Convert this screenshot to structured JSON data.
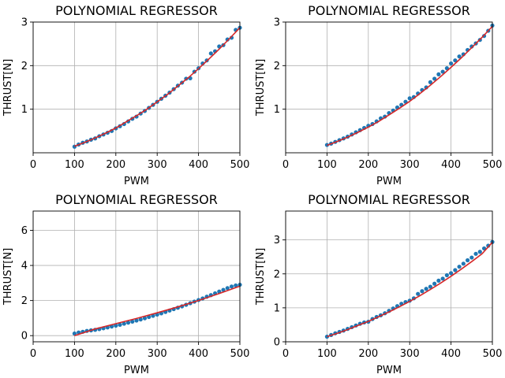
{
  "chart_data": [
    {
      "type": "scatter",
      "title": "POLYNOMIAL REGRESSOR",
      "xlabel": "PWM",
      "ylabel": "THRUST[N]",
      "xlim": [
        0,
        500
      ],
      "ylim": [
        0,
        3.0
      ],
      "xticks": [
        "0",
        "100",
        "200",
        "300",
        "400",
        "500"
      ],
      "yticks": [
        {
          "v": 1,
          "label": "1"
        },
        {
          "v": 2,
          "label": "2"
        },
        {
          "v": 3,
          "label": "3"
        }
      ],
      "grid": true,
      "points": {
        "x": [
          100,
          110,
          120,
          130,
          140,
          150,
          160,
          170,
          180,
          190,
          200,
          210,
          220,
          230,
          240,
          250,
          260,
          270,
          280,
          290,
          300,
          310,
          320,
          330,
          340,
          350,
          360,
          370,
          380,
          390,
          400,
          410,
          420,
          430,
          440,
          450,
          460,
          470,
          480,
          490,
          500
        ],
        "y": [
          0.14,
          0.19,
          0.23,
          0.26,
          0.3,
          0.33,
          0.38,
          0.42,
          0.46,
          0.5,
          0.56,
          0.61,
          0.66,
          0.72,
          0.78,
          0.83,
          0.9,
          0.96,
          1.03,
          1.1,
          1.17,
          1.24,
          1.31,
          1.38,
          1.46,
          1.54,
          1.61,
          1.7,
          1.71,
          1.86,
          1.94,
          2.05,
          2.12,
          2.28,
          2.33,
          2.44,
          2.47,
          2.6,
          2.64,
          2.82,
          2.87
        ]
      },
      "fit": {
        "x": [
          100,
          125,
          150,
          175,
          200,
          225,
          250,
          275,
          300,
          325,
          350,
          375,
          400,
          425,
          450,
          475,
          500
        ],
        "y": [
          0.15,
          0.24,
          0.34,
          0.45,
          0.57,
          0.71,
          0.85,
          1.0,
          1.17,
          1.34,
          1.53,
          1.72,
          1.93,
          2.15,
          2.38,
          2.62,
          2.87
        ]
      }
    },
    {
      "type": "scatter",
      "title": "POLYNOMIAL REGRESSOR",
      "xlabel": "PWM",
      "ylabel": "THRUST[N]",
      "xlim": [
        0,
        500
      ],
      "ylim": [
        0,
        3.0
      ],
      "xticks": [
        "0",
        "100",
        "200",
        "300",
        "400",
        "500"
      ],
      "yticks": [
        {
          "v": 1,
          "label": "1"
        },
        {
          "v": 2,
          "label": "2"
        },
        {
          "v": 3,
          "label": "3"
        }
      ],
      "grid": true,
      "points": {
        "x": [
          100,
          110,
          120,
          130,
          140,
          150,
          160,
          170,
          180,
          190,
          200,
          210,
          220,
          230,
          240,
          250,
          260,
          270,
          280,
          290,
          300,
          310,
          320,
          330,
          340,
          350,
          360,
          370,
          380,
          390,
          400,
          410,
          420,
          430,
          440,
          450,
          460,
          470,
          480,
          490,
          500
        ],
        "y": [
          0.18,
          0.21,
          0.25,
          0.29,
          0.33,
          0.37,
          0.42,
          0.47,
          0.52,
          0.57,
          0.62,
          0.66,
          0.72,
          0.79,
          0.83,
          0.91,
          0.97,
          1.04,
          1.1,
          1.17,
          1.25,
          1.28,
          1.36,
          1.44,
          1.5,
          1.62,
          1.7,
          1.8,
          1.86,
          1.94,
          2.05,
          2.12,
          2.21,
          2.26,
          2.36,
          2.44,
          2.51,
          2.59,
          2.68,
          2.8,
          2.92
        ]
      },
      "fit": {
        "x": [
          100,
          125,
          150,
          175,
          200,
          225,
          250,
          275,
          300,
          325,
          350,
          375,
          400,
          425,
          450,
          475,
          500
        ],
        "y": [
          0.17,
          0.26,
          0.36,
          0.47,
          0.59,
          0.72,
          0.87,
          1.02,
          1.18,
          1.36,
          1.55,
          1.75,
          1.96,
          2.18,
          2.41,
          2.65,
          2.9
        ]
      }
    },
    {
      "type": "scatter",
      "title": "POLYNOMIAL REGRESSOR",
      "xlabel": "PWM",
      "ylabel": "THRUST[N]",
      "xlim": [
        0,
        500
      ],
      "ylim": [
        -0.35,
        7.1
      ],
      "xticks": [
        "0",
        "100",
        "200",
        "300",
        "400",
        "500"
      ],
      "yticks": [
        {
          "v": 0,
          "label": "0"
        },
        {
          "v": 2,
          "label": "2"
        },
        {
          "v": 4,
          "label": "4"
        },
        {
          "v": 6,
          "label": "6"
        }
      ],
      "grid": true,
      "points": {
        "x": [
          100,
          110,
          120,
          130,
          140,
          150,
          160,
          170,
          180,
          190,
          200,
          210,
          220,
          230,
          240,
          250,
          260,
          270,
          280,
          290,
          300,
          310,
          320,
          330,
          340,
          350,
          360,
          370,
          380,
          390,
          400,
          410,
          420,
          430,
          440,
          450,
          460,
          470,
          480,
          490,
          500
        ],
        "y": [
          0.12,
          0.18,
          0.22,
          0.27,
          0.3,
          0.33,
          0.37,
          0.42,
          0.47,
          0.52,
          0.57,
          0.62,
          0.68,
          0.74,
          0.8,
          0.86,
          0.92,
          0.99,
          1.06,
          1.13,
          1.2,
          1.27,
          1.35,
          1.43,
          1.51,
          1.59,
          1.67,
          1.76,
          1.85,
          1.94,
          2.03,
          2.12,
          2.22,
          2.31,
          2.41,
          2.51,
          2.61,
          2.71,
          2.8,
          2.86,
          2.9
        ]
      },
      "fit": {
        "x": [
          100,
          150,
          200,
          250,
          300,
          350,
          400,
          450,
          500
        ],
        "y": [
          0.0,
          0.38,
          0.68,
          0.98,
          1.3,
          1.64,
          2.0,
          2.4,
          2.82
        ]
      }
    },
    {
      "type": "scatter",
      "title": "POLYNOMIAL REGRESSOR",
      "xlabel": "PWM",
      "ylabel": "THRUST[N]",
      "xlim": [
        0,
        500
      ],
      "ylim": [
        0,
        3.85
      ],
      "xticks": [
        "0",
        "100",
        "200",
        "300",
        "400",
        "500"
      ],
      "yticks": [
        {
          "v": 0,
          "label": "0"
        },
        {
          "v": 1,
          "label": "1"
        },
        {
          "v": 2,
          "label": "2"
        },
        {
          "v": 3,
          "label": "3"
        }
      ],
      "grid": true,
      "points": {
        "x": [
          100,
          110,
          120,
          130,
          140,
          150,
          160,
          170,
          180,
          190,
          200,
          210,
          220,
          230,
          240,
          250,
          260,
          270,
          280,
          290,
          300,
          310,
          320,
          330,
          340,
          350,
          360,
          370,
          380,
          390,
          400,
          410,
          420,
          430,
          440,
          450,
          460,
          470,
          480,
          490,
          500
        ],
        "y": [
          0.15,
          0.2,
          0.25,
          0.29,
          0.33,
          0.38,
          0.43,
          0.48,
          0.53,
          0.57,
          0.59,
          0.67,
          0.73,
          0.78,
          0.84,
          0.91,
          0.98,
          1.05,
          1.12,
          1.17,
          1.21,
          1.28,
          1.41,
          1.49,
          1.56,
          1.62,
          1.71,
          1.8,
          1.86,
          1.96,
          2.02,
          2.11,
          2.21,
          2.3,
          2.4,
          2.48,
          2.59,
          2.65,
          2.75,
          2.83,
          2.94
        ]
      },
      "fit": {
        "x": [
          100,
          125,
          150,
          175,
          200,
          225,
          250,
          275,
          300,
          325,
          350,
          375,
          400,
          425,
          450,
          475,
          500
        ],
        "y": [
          0.15,
          0.25,
          0.36,
          0.48,
          0.6,
          0.74,
          0.88,
          1.03,
          1.19,
          1.36,
          1.54,
          1.73,
          1.93,
          2.14,
          2.36,
          2.59,
          2.93
        ]
      }
    }
  ],
  "colors": {
    "marker": "#1f77b4",
    "fit_line": "#d62728",
    "grid": "#b0b0b0",
    "axis": "#000000"
  }
}
